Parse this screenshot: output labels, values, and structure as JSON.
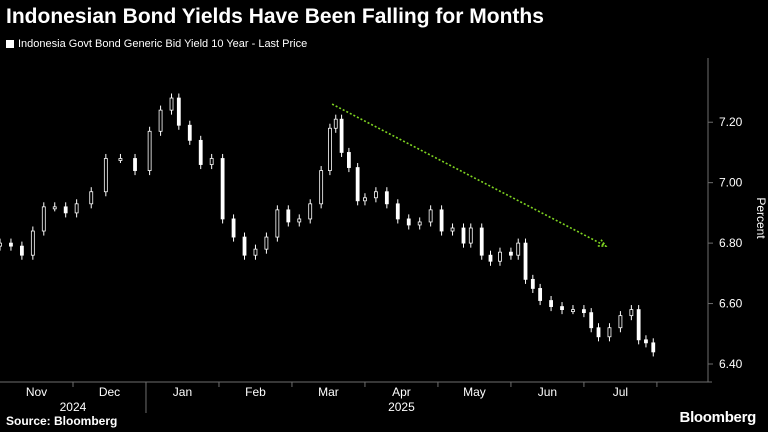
{
  "colors": {
    "background": "#000000",
    "text": "#ffffff",
    "series": "#ffffff",
    "trend_arrow": "#7ed321",
    "axis": "#6e6e6e"
  },
  "chart_data": {
    "type": "candlestick",
    "title": "Indonesian Bond Yields Have Been Falling for Months",
    "legend": "Indonesia Govt Bond Generic Bid Yield 10 Year - Last Price",
    "ylabel": "Percent",
    "ylim": [
      6.4,
      7.35
    ],
    "y_ticks": [
      "7.20",
      "7.00",
      "6.80",
      "6.60",
      "6.40"
    ],
    "x_month_labels": [
      "Nov",
      "Dec",
      "Jan",
      "Feb",
      "Mar",
      "Apr",
      "May",
      "Jun",
      "Jul"
    ],
    "year_labels": [
      "2024",
      "2025"
    ],
    "x_range": [
      0,
      9.7
    ],
    "month_bounds": [
      0,
      1,
      2,
      3,
      4,
      5,
      6,
      7,
      8,
      9
    ],
    "daily_close": [
      [
        0.0,
        6.8
      ],
      [
        0.15,
        6.79
      ],
      [
        0.3,
        6.76
      ],
      [
        0.45,
        6.84
      ],
      [
        0.6,
        6.92
      ],
      [
        0.75,
        6.92
      ],
      [
        0.9,
        6.9
      ],
      [
        1.05,
        6.93
      ],
      [
        1.25,
        6.97
      ],
      [
        1.45,
        7.08
      ],
      [
        1.65,
        7.08
      ],
      [
        1.85,
        7.04
      ],
      [
        2.05,
        7.17
      ],
      [
        2.2,
        7.24
      ],
      [
        2.35,
        7.28
      ],
      [
        2.45,
        7.19
      ],
      [
        2.6,
        7.14
      ],
      [
        2.75,
        7.06
      ],
      [
        2.9,
        7.08
      ],
      [
        3.05,
        6.88
      ],
      [
        3.2,
        6.82
      ],
      [
        3.35,
        6.76
      ],
      [
        3.5,
        6.78
      ],
      [
        3.65,
        6.82
      ],
      [
        3.8,
        6.91
      ],
      [
        3.95,
        6.87
      ],
      [
        4.1,
        6.88
      ],
      [
        4.25,
        6.93
      ],
      [
        4.4,
        7.04
      ],
      [
        4.52,
        7.18
      ],
      [
        4.6,
        7.21
      ],
      [
        4.68,
        7.1
      ],
      [
        4.78,
        7.05
      ],
      [
        4.9,
        6.94
      ],
      [
        5.0,
        6.95
      ],
      [
        5.15,
        6.97
      ],
      [
        5.3,
        6.93
      ],
      [
        5.45,
        6.88
      ],
      [
        5.6,
        6.86
      ],
      [
        5.75,
        6.87
      ],
      [
        5.9,
        6.91
      ],
      [
        6.05,
        6.84
      ],
      [
        6.2,
        6.85
      ],
      [
        6.35,
        6.8
      ],
      [
        6.45,
        6.85
      ],
      [
        6.6,
        6.76
      ],
      [
        6.72,
        6.74
      ],
      [
        6.85,
        6.77
      ],
      [
        7.0,
        6.76
      ],
      [
        7.1,
        6.8
      ],
      [
        7.2,
        6.68
      ],
      [
        7.3,
        6.65
      ],
      [
        7.4,
        6.61
      ],
      [
        7.55,
        6.59
      ],
      [
        7.7,
        6.58
      ],
      [
        7.85,
        6.58
      ],
      [
        8.0,
        6.57
      ],
      [
        8.1,
        6.52
      ],
      [
        8.2,
        6.49
      ],
      [
        8.35,
        6.52
      ],
      [
        8.5,
        6.56
      ],
      [
        8.65,
        6.58
      ],
      [
        8.75,
        6.48
      ],
      [
        8.85,
        6.47
      ],
      [
        8.95,
        6.44
      ]
    ],
    "trend_arrow": {
      "from": [
        4.55,
        7.26
      ],
      "to": [
        8.3,
        6.79
      ]
    }
  },
  "source": "Source: Bloomberg",
  "brand": "Bloomberg"
}
